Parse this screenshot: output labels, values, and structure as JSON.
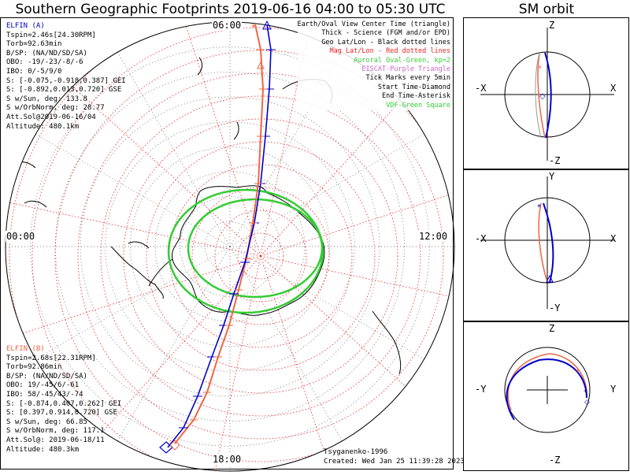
{
  "title": "Southern Geographic Footprints 2019-06-16 04:00 to 05:30 UTC",
  "sm_title": "SM orbit",
  "colors": {
    "elfin_a": "#0000cc",
    "elfin_b": "#ee6644",
    "oval": "#33cc33",
    "mag_grid": "#ee2222",
    "geo_grid": "#222222",
    "eiscat": "#cc66cc",
    "vdf": "#33cc33"
  },
  "elfin_a": {
    "name": "ELFIN (A)",
    "lines": [
      "Tspin=2.46s[24.30RPM]",
      "Torb=92.63min",
      "B/SP: (NA/ND/SD/SA)",
      "OBO: -19/-23/-8/-6",
      "IBO: 0/-5/9/0",
      "S: [-0.075,-0.918,0.387] GEI",
      "S: [-0.892,0.013,0.720] GSE",
      "S w/Sun, deg: 133.8",
      "S w/OrbNorm, deg: 28.77",
      "Att.Sol@2019-06-16/04",
      "Altitude: 480.1km"
    ]
  },
  "elfin_b": {
    "name": "ELFIN (B)",
    "lines": [
      "Tspin=2.68s[22.31RPM]",
      "Torb=92.86min",
      "B/SP: (NA/ND/SD/SA)",
      "OBO: 19/-45/6/-61",
      "IBO: 58/-45/43/-74",
      "S: [-0.874,0.407,0.262] GEI",
      "S: [0.397,0.914,0.720] GSE",
      "S w/Sun, deg: 66.85",
      "S w/OrbNorm, deg: 117.1",
      "Att.Sol@: 2019-06-18/11",
      "Altitude: 480.3km"
    ]
  },
  "legend": [
    {
      "text": "Earth/Oval View Center Time (triangle)",
      "color": "#000000"
    },
    {
      "text": "Thick - Science (FGM and/or EPD)",
      "color": "#000000"
    },
    {
      "text": "Geo Lat/Lon - Black dotted lines",
      "color": "#000000"
    },
    {
      "text": "Mag Lat/Lon - Red dotted lines",
      "color": "#ee2222"
    },
    {
      "text": "Auroral Oval-Green, kp=2",
      "color": "#33cc33"
    },
    {
      "text": "EISCAT-Purple Triangle",
      "color": "#cc66cc"
    },
    {
      "text": "Tick Marks every 5min",
      "color": "#000000"
    },
    {
      "text": "Start Time-Diamond",
      "color": "#000000"
    },
    {
      "text": "End Time-Asterisk",
      "color": "#000000"
    },
    {
      "text": "VDF-Green Square",
      "color": "#33cc33"
    }
  ],
  "clock_labels": {
    "top": "06:00",
    "left": "00:00",
    "right": "12:00",
    "bottom": "18:00"
  },
  "footer": {
    "author": "Tsyganenko-1996",
    "created": "Created: Wed Jan 25 11:39:28 2023"
  },
  "sm_panels": [
    {
      "top": "Z",
      "bottom": "-Z",
      "left": "-X",
      "right": "X"
    },
    {
      "top": "Y",
      "bottom": "-Y",
      "left": "-X",
      "right": "X"
    },
    {
      "top": "Z",
      "bottom": "-Z",
      "left": "-Y",
      "right": "Y"
    }
  ],
  "chart_data": {
    "type": "polar-map",
    "projection": "south polar stereographic",
    "title": "Southern Geographic Footprints 2019-06-16 04:00 to 05:30 UTC",
    "time_range": [
      "2019-06-16 04:00",
      "2019-06-16 05:30"
    ],
    "auroral_oval_kp": 2,
    "tick_interval_min": 5,
    "series": [
      {
        "name": "ELFIN (A)",
        "color": "#0000cc"
      },
      {
        "name": "ELFIN (B)",
        "color": "#ee6644"
      }
    ]
  }
}
